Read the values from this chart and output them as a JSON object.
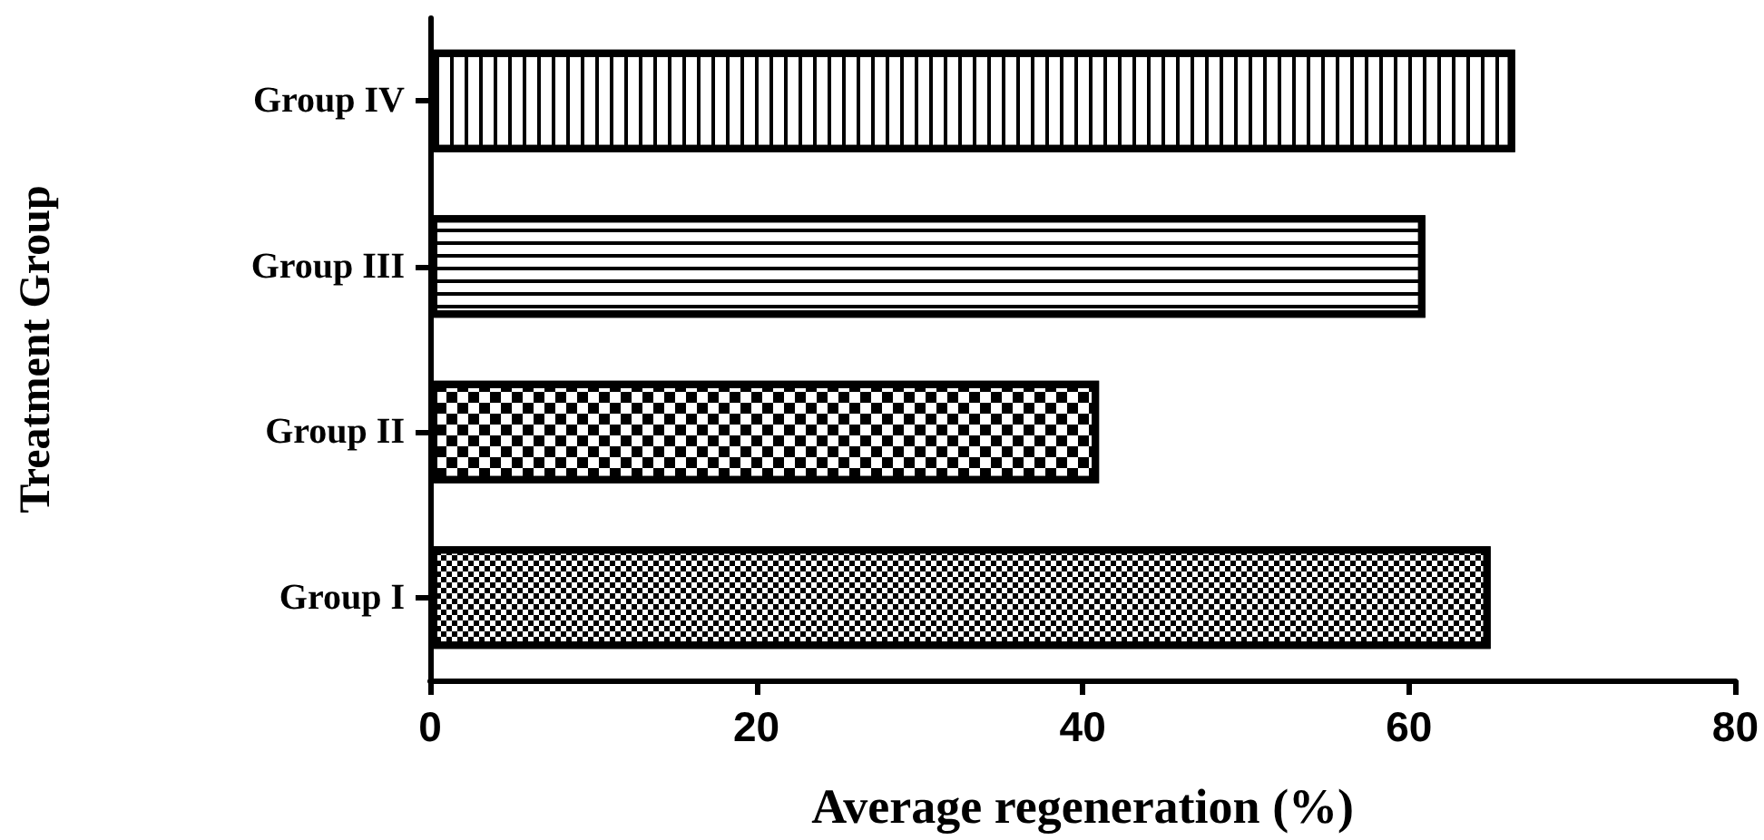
{
  "chart_data": {
    "type": "bar",
    "orientation": "horizontal",
    "categories": [
      "Group IV",
      "Group III",
      "Group II",
      "Group I"
    ],
    "values": [
      66.5,
      61,
      41,
      65
    ],
    "color": "#ffffff",
    "xlabel": "Average regeneration (%)",
    "ylabel": "Treatment Group",
    "xlim": [
      0,
      80
    ],
    "xticks": [
      0,
      20,
      40,
      60,
      80
    ]
  }
}
